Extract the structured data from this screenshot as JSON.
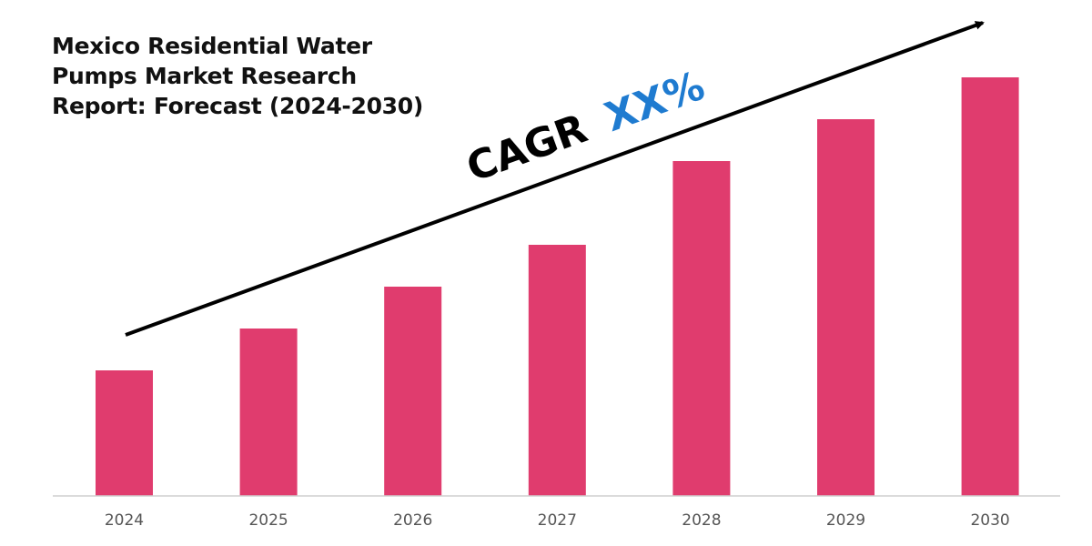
{
  "chart_data": {
    "type": "bar",
    "title": "Mexico Residential Water Pumps Market Research Report: Forecast (2024-2030)",
    "categories": [
      "2024",
      "2025",
      "2026",
      "2027",
      "2028",
      "2029",
      "2030"
    ],
    "values": [
      30,
      40,
      50,
      60,
      80,
      90,
      100
    ],
    "xlabel": "",
    "ylabel": "",
    "ylim": [
      0,
      100
    ],
    "grid": false,
    "bar_color": "#E03C6E",
    "annotation": {
      "prefix": "CAGR",
      "value": "XX%",
      "prefix_color": "#000000",
      "value_color": "#1F7BD0",
      "arrow": "trend arrow rising left to right"
    }
  }
}
